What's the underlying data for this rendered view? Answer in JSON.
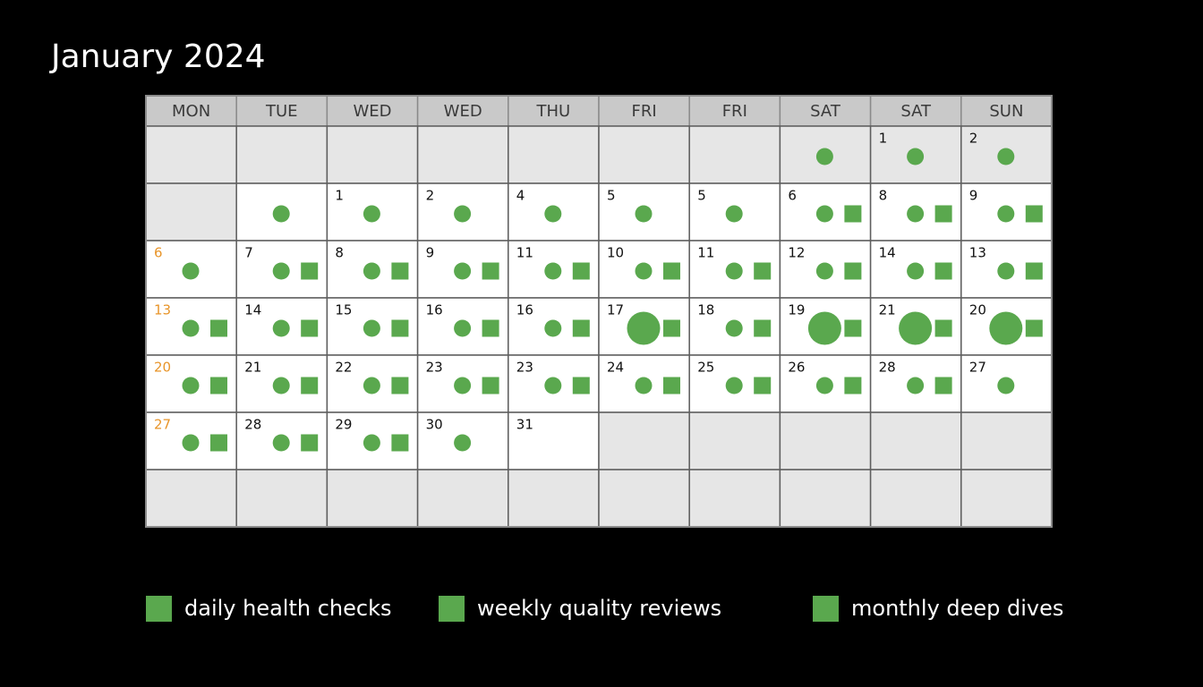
{
  "title": "January 2024",
  "header": [
    "MON",
    "TUE",
    "WED",
    "WED",
    "THU",
    "FRI",
    "FRI",
    "SAT",
    "SAT",
    "SUN"
  ],
  "mark_color": "#5aa84e",
  "rows": [
    [
      {
        "shade": "gray"
      },
      {
        "shade": "gray"
      },
      {
        "shade": "gray"
      },
      {
        "shade": "gray"
      },
      {
        "shade": "gray"
      },
      {
        "shade": "gray"
      },
      {
        "shade": "gray"
      },
      {
        "shade": "gray",
        "circle": "small"
      },
      {
        "shade": "gray",
        "day": "1",
        "circle": "small"
      },
      {
        "shade": "gray",
        "day": "2",
        "circle": "small"
      }
    ],
    [
      {
        "shade": "gray"
      },
      {
        "circle": "small"
      },
      {
        "day": "1",
        "circle": "small"
      },
      {
        "day": "2",
        "circle": "small"
      },
      {
        "day": "4",
        "circle": "small"
      },
      {
        "day": "5",
        "circle": "small"
      },
      {
        "day": "5",
        "circle": "small"
      },
      {
        "day": "6",
        "circle": "small",
        "square": true
      },
      {
        "day": "8",
        "circle": "small",
        "square": true
      },
      {
        "day": "9",
        "circle": "small",
        "square": true
      }
    ],
    [
      {
        "day": "6",
        "day_color": "orange",
        "circle": "small"
      },
      {
        "day": "7",
        "circle": "small",
        "square": true
      },
      {
        "day": "8",
        "circle": "small",
        "square": true
      },
      {
        "day": "9",
        "circle": "small",
        "square": true
      },
      {
        "day": "11",
        "circle": "small",
        "square": true
      },
      {
        "day": "10",
        "circle": "small",
        "square": true
      },
      {
        "day": "11",
        "circle": "small",
        "square": true
      },
      {
        "day": "12",
        "circle": "small",
        "square": true
      },
      {
        "day": "14",
        "circle": "small",
        "square": true
      },
      {
        "day": "13",
        "circle": "small",
        "square": true
      }
    ],
    [
      {
        "day": "13",
        "day_color": "orange",
        "circle": "small",
        "square": true
      },
      {
        "day": "14",
        "circle": "small",
        "square": true
      },
      {
        "day": "15",
        "circle": "small",
        "square": true
      },
      {
        "day": "16",
        "circle": "small",
        "square": true
      },
      {
        "day": "16",
        "circle": "small",
        "square": true
      },
      {
        "day": "17",
        "circle": "large",
        "square": true
      },
      {
        "day": "18",
        "circle": "small",
        "square": true
      },
      {
        "day": "19",
        "circle": "large",
        "square": true
      },
      {
        "day": "21",
        "circle": "large",
        "square": true
      },
      {
        "day": "20",
        "circle": "large",
        "square": true
      }
    ],
    [
      {
        "day": "20",
        "day_color": "orange",
        "circle": "small",
        "square": true
      },
      {
        "day": "21",
        "circle": "small",
        "square": true
      },
      {
        "day": "22",
        "circle": "small",
        "square": true
      },
      {
        "day": "23",
        "circle": "small",
        "square": true
      },
      {
        "day": "23",
        "circle": "small",
        "square": true
      },
      {
        "day": "24",
        "circle": "small",
        "square": true
      },
      {
        "day": "25",
        "circle": "small",
        "square": true
      },
      {
        "day": "26",
        "circle": "small",
        "square": true
      },
      {
        "day": "28",
        "circle": "small",
        "square": true
      },
      {
        "day": "27",
        "circle": "small"
      }
    ],
    [
      {
        "day": "27",
        "day_color": "orange",
        "circle": "small",
        "square": true
      },
      {
        "day": "28",
        "circle": "small",
        "square": true
      },
      {
        "day": "29",
        "circle": "small",
        "square": true
      },
      {
        "day": "30",
        "circle": "small"
      },
      {
        "day": "31"
      },
      {
        "shade": "gray"
      },
      {
        "shade": "gray"
      },
      {
        "shade": "gray"
      },
      {
        "shade": "gray"
      },
      {
        "shade": "gray"
      }
    ],
    [
      {
        "shade": "gray"
      },
      {
        "shade": "gray"
      },
      {
        "shade": "gray"
      },
      {
        "shade": "gray"
      },
      {
        "shade": "gray"
      },
      {
        "shade": "gray"
      },
      {
        "shade": "gray"
      },
      {
        "shade": "gray"
      },
      {
        "shade": "gray"
      },
      {
        "shade": "gray"
      }
    ]
  ],
  "legend": [
    {
      "label": "daily health checks"
    },
    {
      "label": "weekly quality reviews"
    },
    {
      "label": "monthly deep dives"
    }
  ]
}
